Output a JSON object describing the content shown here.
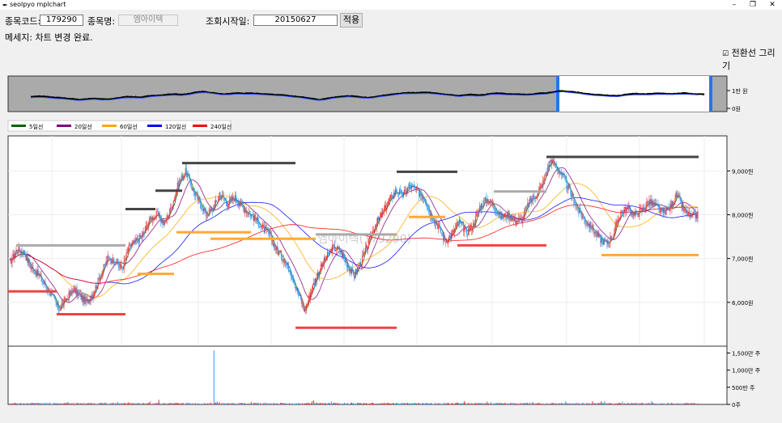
{
  "window": {
    "title": "seolpyo mplchart",
    "minimize": "–",
    "maximize": "❐",
    "close": "✕"
  },
  "form": {
    "code_label": "종목코드:",
    "code_value": "179290",
    "name_label": "종목명:",
    "name_value": "엠아이텍",
    "start_label": "조회시작일:",
    "start_value": "20150627",
    "apply_label": "적용"
  },
  "message": "메세지: 차트 변경 완료.",
  "checkbox": {
    "label": "전환선 그리기",
    "checked": true
  },
  "chart_data": {
    "type": "candlestick",
    "watermark": "엠아이텍(179290)",
    "legend": [
      "5일선",
      "20일선",
      "60일선",
      "120일선",
      "240일선"
    ],
    "legend_colors": [
      "#006400",
      "#800080",
      "#ffa500",
      "#0000ff",
      "#ff0000"
    ],
    "overview_ticks": [
      "1만 원",
      "0원"
    ],
    "price_ticks": [
      {
        "value": 9000,
        "label": "9,000원"
      },
      {
        "value": 8000,
        "label": "8,000원"
      },
      {
        "value": 7000,
        "label": "7,000원"
      },
      {
        "value": 6000,
        "label": "6,000원"
      }
    ],
    "price_range": [
      5000,
      9800
    ],
    "volume_ticks": [
      {
        "value": 1500,
        "label": "1,500만 주"
      },
      {
        "value": 1000,
        "label": "1,000만 주"
      },
      {
        "value": 500,
        "label": "500만 주"
      },
      {
        "value": 0,
        "label": "0주"
      }
    ],
    "volume_range": [
      0,
      1700
    ],
    "close_path": [
      6900,
      7200,
      7150,
      6800,
      6650,
      6400,
      6150,
      5850,
      6050,
      6300,
      6150,
      6000,
      6250,
      6650,
      7000,
      6950,
      6750,
      7250,
      7400,
      7550,
      7900,
      8000,
      7800,
      8150,
      8700,
      9000,
      8600,
      8300,
      8000,
      8150,
      8450,
      8250,
      8400,
      8200,
      8050,
      7900,
      7700,
      7550,
      7200,
      7000,
      6700,
      6250,
      5800,
      6300,
      6700,
      7000,
      7250,
      7200,
      6900,
      6600,
      6900,
      7300,
      7750,
      8000,
      8300,
      8550,
      8450,
      8650,
      8550,
      8400,
      8000,
      7750,
      7400,
      7550,
      7850,
      7600,
      7750,
      8200,
      8350,
      8200,
      7950,
      8000,
      7850,
      7900,
      8300,
      8450,
      8750,
      9250,
      9050,
      8800,
      8450,
      8100,
      7850,
      7700,
      7450,
      7350,
      7550,
      8050,
      8150,
      8000,
      8100,
      8300,
      8200,
      8050,
      8150,
      8450,
      8100,
      7950,
      8000
    ],
    "transition_lines": [
      {
        "x": [
          10,
          70
        ],
        "y": 6250,
        "color": "#ee4444"
      },
      {
        "x": [
          20,
          155
        ],
        "y": 7300,
        "color": "#aaaaaa"
      },
      {
        "x": [
          70,
          155
        ],
        "y": 5730,
        "color": "#ee4444"
      },
      {
        "x": [
          155,
          192
        ],
        "y": 8130,
        "color": "#444444"
      },
      {
        "x": [
          170,
          215
        ],
        "y": 6650,
        "color": "#ffaa33"
      },
      {
        "x": [
          192,
          225
        ],
        "y": 8550,
        "color": "#444444"
      },
      {
        "x": [
          225,
          365
        ],
        "y": 9180,
        "color": "#444444"
      },
      {
        "x": [
          218,
          310
        ],
        "y": 7600,
        "color": "#ffaa33"
      },
      {
        "x": [
          260,
          390
        ],
        "y": 7450,
        "color": "#ffaa33"
      },
      {
        "x": [
          365,
          490
        ],
        "y": 5420,
        "color": "#ee4444"
      },
      {
        "x": [
          390,
          490
        ],
        "y": 7550,
        "color": "#aaaaaa"
      },
      {
        "x": [
          490,
          565
        ],
        "y": 8980,
        "color": "#444444"
      },
      {
        "x": [
          505,
          550
        ],
        "y": 7950,
        "color": "#ffaa33"
      },
      {
        "x": [
          565,
          675
        ],
        "y": 7300,
        "color": "#ee4444"
      },
      {
        "x": [
          610,
          675
        ],
        "y": 8530,
        "color": "#aaaaaa"
      },
      {
        "x": [
          675,
          863
        ],
        "y": 9320,
        "color": "#444444"
      },
      {
        "x": [
          743,
          863
        ],
        "y": 7080,
        "color": "#ffaa33"
      }
    ]
  }
}
